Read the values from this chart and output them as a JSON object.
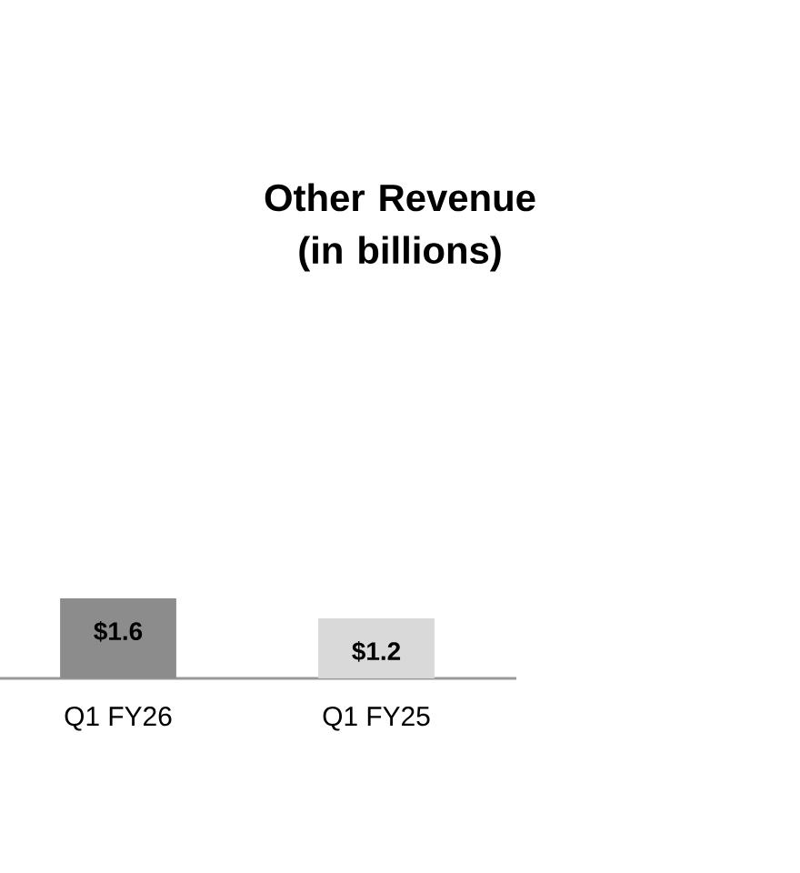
{
  "chart_data": {
    "type": "bar",
    "title": "Other Revenue (in billions)",
    "categories": [
      "Q1 FY26",
      "Q1 FY25"
    ],
    "values": [
      1.6,
      1.2
    ],
    "colors": [
      "#8c8c8c",
      "#d9d9d9"
    ],
    "value_labels": [
      "$1.6",
      "$1.2"
    ]
  }
}
